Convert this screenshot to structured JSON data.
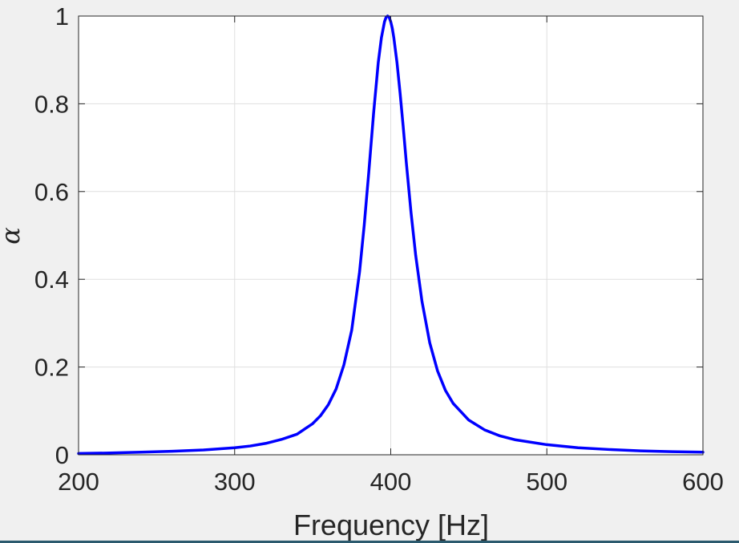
{
  "chart_data": {
    "type": "line",
    "title": "",
    "xlabel": "Frequency [Hz]",
    "ylabel": "α",
    "xlim": [
      200,
      600
    ],
    "ylim": [
      0,
      1
    ],
    "xticks": [
      200,
      300,
      400,
      500,
      600
    ],
    "yticks": [
      0,
      0.2,
      0.4,
      0.6,
      0.8,
      1
    ],
    "xtick_labels": [
      "200",
      "300",
      "400",
      "500",
      "600"
    ],
    "ytick_labels": [
      "0",
      "0.2",
      "0.4",
      "0.6",
      "0.8",
      "1"
    ],
    "grid": true,
    "legend": "none",
    "series": [
      {
        "color": "#0000ff",
        "x": [
          200,
          220,
          240,
          260,
          280,
          300,
          310,
          320,
          330,
          340,
          350,
          355,
          360,
          365,
          370,
          375,
          380,
          383,
          386,
          389,
          392,
          394,
          396,
          397,
          398,
          399,
          400,
          401,
          402,
          404,
          406,
          408,
          410,
          413,
          416,
          420,
          425,
          430,
          435,
          440,
          450,
          460,
          470,
          480,
          500,
          520,
          540,
          560,
          580,
          600
        ],
        "y": [
          0.003,
          0.004,
          0.006,
          0.008,
          0.011,
          0.016,
          0.02,
          0.026,
          0.035,
          0.047,
          0.071,
          0.089,
          0.114,
          0.15,
          0.205,
          0.284,
          0.416,
          0.523,
          0.647,
          0.778,
          0.894,
          0.95,
          0.987,
          0.997,
          1.0,
          0.997,
          0.987,
          0.972,
          0.95,
          0.894,
          0.824,
          0.747,
          0.665,
          0.552,
          0.454,
          0.35,
          0.255,
          0.191,
          0.147,
          0.117,
          0.079,
          0.057,
          0.043,
          0.034,
          0.023,
          0.016,
          0.012,
          0.009,
          0.007,
          0.006
        ]
      }
    ]
  }
}
